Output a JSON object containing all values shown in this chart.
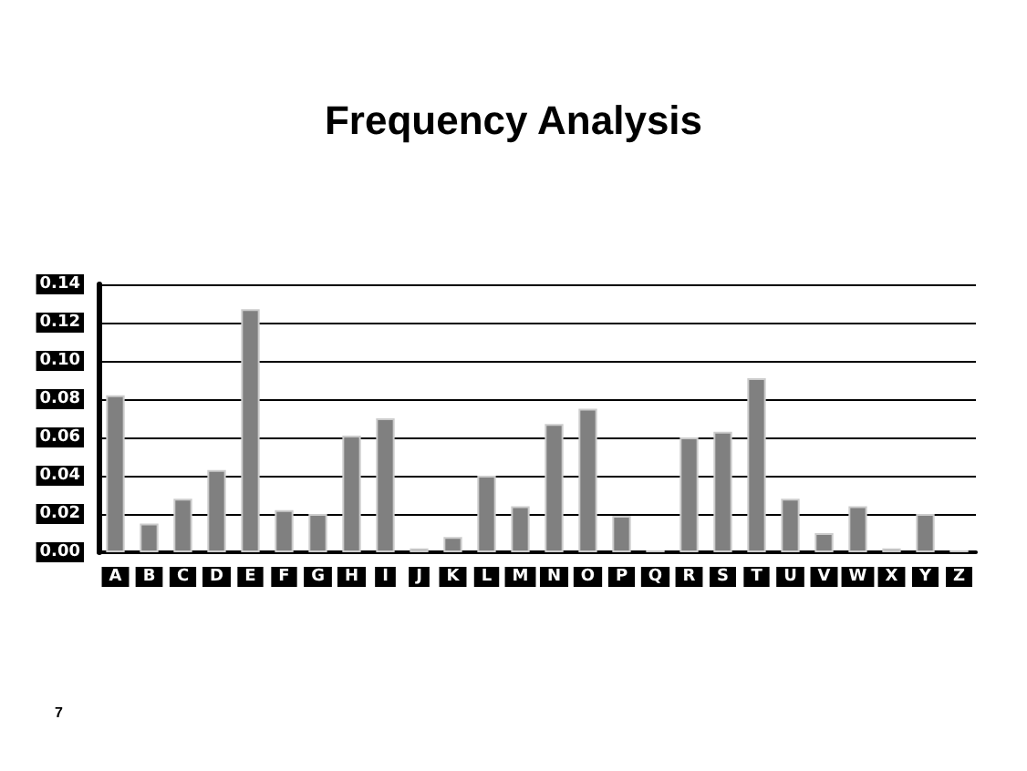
{
  "chart_data": {
    "type": "bar",
    "title": "Frequency Analysis",
    "categories": [
      "A",
      "B",
      "C",
      "D",
      "E",
      "F",
      "G",
      "H",
      "I",
      "J",
      "K",
      "L",
      "M",
      "N",
      "O",
      "P",
      "Q",
      "R",
      "S",
      "T",
      "U",
      "V",
      "W",
      "X",
      "Y",
      "Z"
    ],
    "values": [
      0.082,
      0.015,
      0.028,
      0.043,
      0.127,
      0.022,
      0.02,
      0.061,
      0.07,
      0.002,
      0.008,
      0.04,
      0.024,
      0.067,
      0.075,
      0.019,
      0.001,
      0.06,
      0.063,
      0.091,
      0.028,
      0.01,
      0.024,
      0.002,
      0.02,
      0.001
    ],
    "color": "#808080",
    "ylim": [
      0,
      0.14
    ],
    "yticks": [
      {
        "value": 0,
        "label": "0.00"
      },
      {
        "value": 0.02,
        "label": "0.02"
      },
      {
        "value": 0.04,
        "label": "0.04"
      },
      {
        "value": 0.06,
        "label": "0.06"
      },
      {
        "value": 0.08,
        "label": "0.08"
      },
      {
        "value": 0.1,
        "label": "0.10"
      },
      {
        "value": 0.12,
        "label": "0.12"
      },
      {
        "value": 0.14,
        "label": "0.14"
      }
    ],
    "grid": "y",
    "annotations": [
      "7"
    ]
  }
}
